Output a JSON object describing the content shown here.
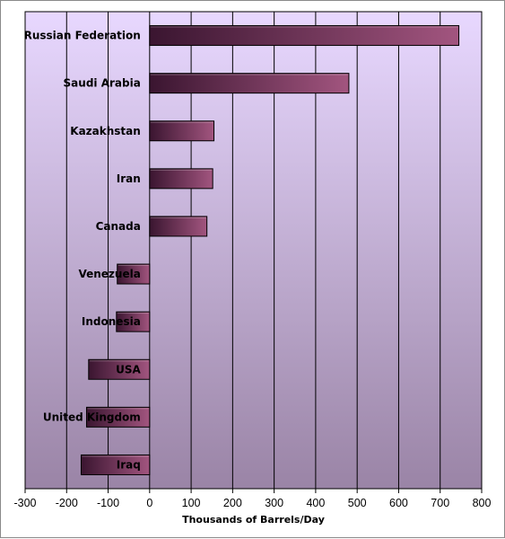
{
  "chart_data": {
    "type": "bar",
    "orientation": "horizontal",
    "categories": [
      "Russian Federation",
      "Saudi Arabia",
      "Kazakhstan",
      "Iran",
      "Canada",
      "Venezuela",
      "Indonesia",
      "USA",
      "United Kingdom",
      "Iraq"
    ],
    "values": [
      745,
      480,
      155,
      152,
      138,
      -78,
      -80,
      -147,
      -152,
      -165
    ],
    "xlabel": "Thousands of Barrels/Day",
    "xlim": [
      -300,
      800
    ],
    "xticks": [
      "-300",
      "-200",
      "-100",
      "0",
      "100",
      "200",
      "300",
      "400",
      "500",
      "600",
      "700",
      "800"
    ],
    "grid": "vertical",
    "colors": {
      "bar_dark": "#3a1530",
      "bar_light": "#a2557f",
      "bg_top": "#e8d8ff",
      "bg_bottom": "#9a84a6"
    }
  }
}
